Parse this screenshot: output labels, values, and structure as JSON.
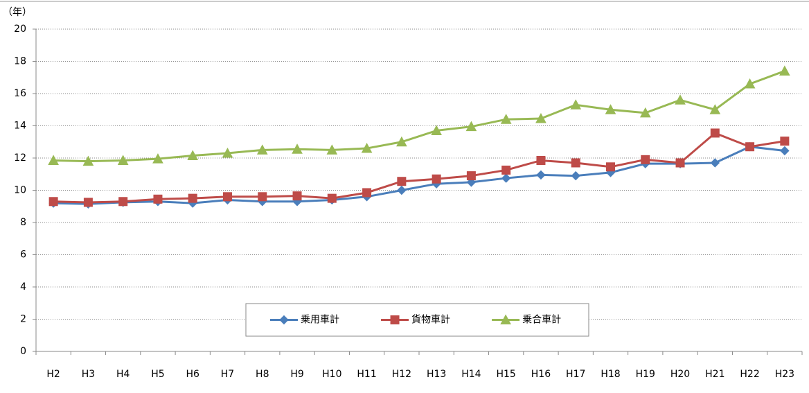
{
  "chart_data": {
    "type": "line",
    "y_label": "（年）",
    "categories": [
      "H2",
      "H3",
      "H4",
      "H5",
      "H6",
      "H7",
      "H8",
      "H9",
      "H10",
      "H11",
      "H12",
      "H13",
      "H14",
      "H15",
      "H16",
      "H17",
      "H18",
      "H19",
      "H20",
      "H21",
      "H22",
      "H23"
    ],
    "series": [
      {
        "name": "乗用車計",
        "color": "#4a7ebb",
        "marker": "diamond",
        "values": [
          9.2,
          9.15,
          9.25,
          9.3,
          9.2,
          9.4,
          9.3,
          9.3,
          9.4,
          9.6,
          10.0,
          10.4,
          10.5,
          10.75,
          10.95,
          10.9,
          11.1,
          11.65,
          11.65,
          11.7,
          12.7,
          12.45
        ]
      },
      {
        "name": "貨物車計",
        "color": "#be4b48",
        "marker": "square",
        "values": [
          9.3,
          9.25,
          9.3,
          9.45,
          9.5,
          9.6,
          9.6,
          9.65,
          9.5,
          9.85,
          10.55,
          10.7,
          10.9,
          11.25,
          11.85,
          11.7,
          11.45,
          11.9,
          11.7,
          13.55,
          12.7,
          13.05
        ]
      },
      {
        "name": "乗合車計",
        "color": "#98b954",
        "marker": "triangle",
        "values": [
          11.85,
          11.8,
          11.85,
          11.95,
          12.15,
          12.3,
          12.5,
          12.55,
          12.5,
          12.6,
          13.0,
          13.7,
          13.95,
          14.4,
          14.45,
          15.3,
          15.0,
          14.8,
          15.6,
          15.0,
          16.6,
          17.4
        ]
      }
    ],
    "ylim": [
      0,
      20
    ],
    "yticks": [
      0,
      2,
      4,
      6,
      8,
      10,
      12,
      14,
      16,
      18,
      20
    ],
    "grid": true,
    "legend": "bottom-center"
  }
}
